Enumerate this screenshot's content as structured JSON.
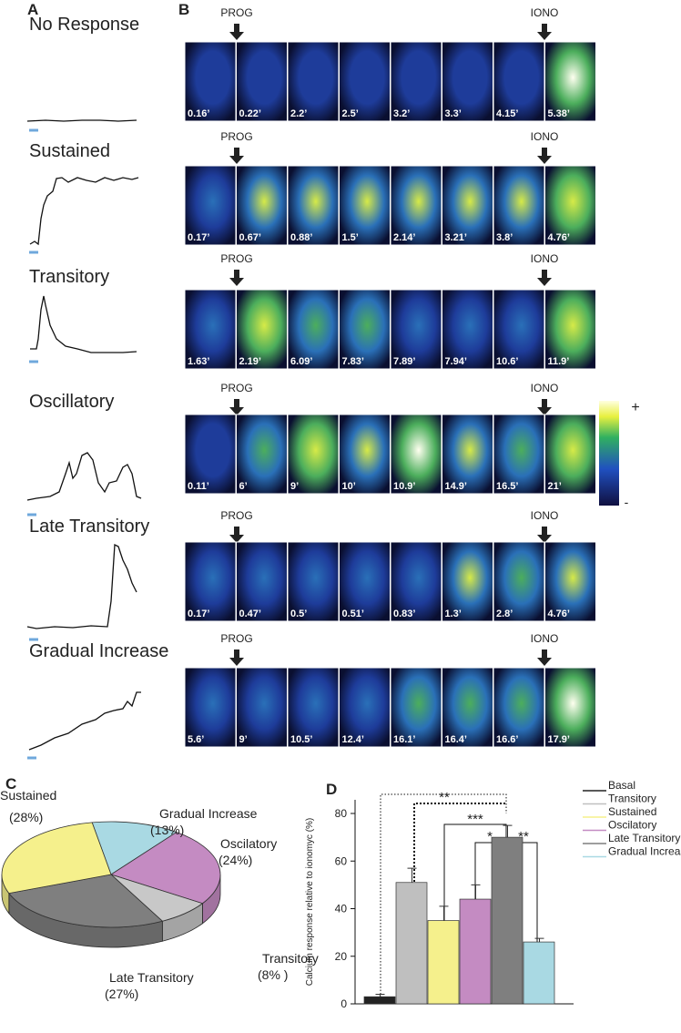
{
  "panel_labels": [
    "A",
    "B",
    "C",
    "D"
  ],
  "rows": [
    {
      "name": "No Response",
      "markers": [
        "PROG",
        "IONO"
      ],
      "times": [
        "0.16’",
        "0.22’",
        "2.2’",
        "2.5’",
        "3.2’",
        "3.3’",
        "4.15’",
        "5.38’"
      ]
    },
    {
      "name": "Sustained",
      "markers": [
        "PROG",
        "IONO"
      ],
      "times": [
        "0.17’",
        "0.67’",
        "0.88’",
        "1.5’",
        "2.14’",
        "3.21’",
        "3.8’",
        "4.76’"
      ]
    },
    {
      "name": "Transitory",
      "markers": [
        "PROG",
        "IONO"
      ],
      "times": [
        "1.63’",
        "2.19’",
        "6.09’",
        "7.83’",
        "7.89’",
        "7.94’",
        "10.6’",
        "11.9’"
      ]
    },
    {
      "name": "Oscillatory",
      "markers": [
        "PROG",
        "IONO"
      ],
      "times": [
        "0.11’",
        "6’",
        "9’",
        "10’",
        "10.9’",
        "14.9’",
        "16.5’",
        "21’"
      ]
    },
    {
      "name": "Late Transitory",
      "markers": [
        "PROG",
        "IONO"
      ],
      "times": [
        "0.17’",
        "0.47’",
        "0.5’",
        "0.51’",
        "0.83’",
        "1.3’",
        "2.8’",
        "4.76’"
      ]
    },
    {
      "name": "Gradual Increase",
      "markers": [
        "PROG",
        "IONO"
      ],
      "times": [
        "5.6’",
        "9’",
        "10.5’",
        "12.4’",
        "16.1’",
        "16.4’",
        "16.6’",
        "17.9’"
      ]
    }
  ],
  "colorbar": {
    "max_label": "+",
    "min_label": "-"
  },
  "chart_data": [
    {
      "type": "pie",
      "categories": [
        "Gradual Increase",
        "Oscilatory",
        "Transitory",
        "Late Transitory",
        "Sustained"
      ],
      "values": [
        13,
        24,
        8,
        27,
        28
      ],
      "value_labels": [
        "(13%)",
        "(24%)",
        "(8% )",
        "(27%)",
        "(28%)"
      ],
      "colors": [
        "#a9d9e3",
        "#c48bc2",
        "#c8c8c8",
        "#7f7f7f",
        "#f5f08c"
      ]
    },
    {
      "type": "bar",
      "y_label": "Calcium response relative to ionomyc (%)",
      "categories": [
        "Basal",
        "Transitory",
        "Sustained",
        "Oscilatory",
        "Late Transitory",
        "Gradual Increase"
      ],
      "values": [
        3,
        51,
        35,
        44,
        70,
        26
      ],
      "errors": [
        1,
        6,
        6,
        6,
        5,
        1.5
      ],
      "colors": [
        "#222222",
        "#bfbfbf",
        "#f5f08c",
        "#c48bc2",
        "#7f7f7f",
        "#a9d9e3"
      ],
      "ylim": [
        0,
        80
      ],
      "yticks": [
        0,
        20,
        40,
        60,
        80
      ],
      "annotations": [
        "**",
        "***",
        "*",
        "**"
      ]
    }
  ]
}
